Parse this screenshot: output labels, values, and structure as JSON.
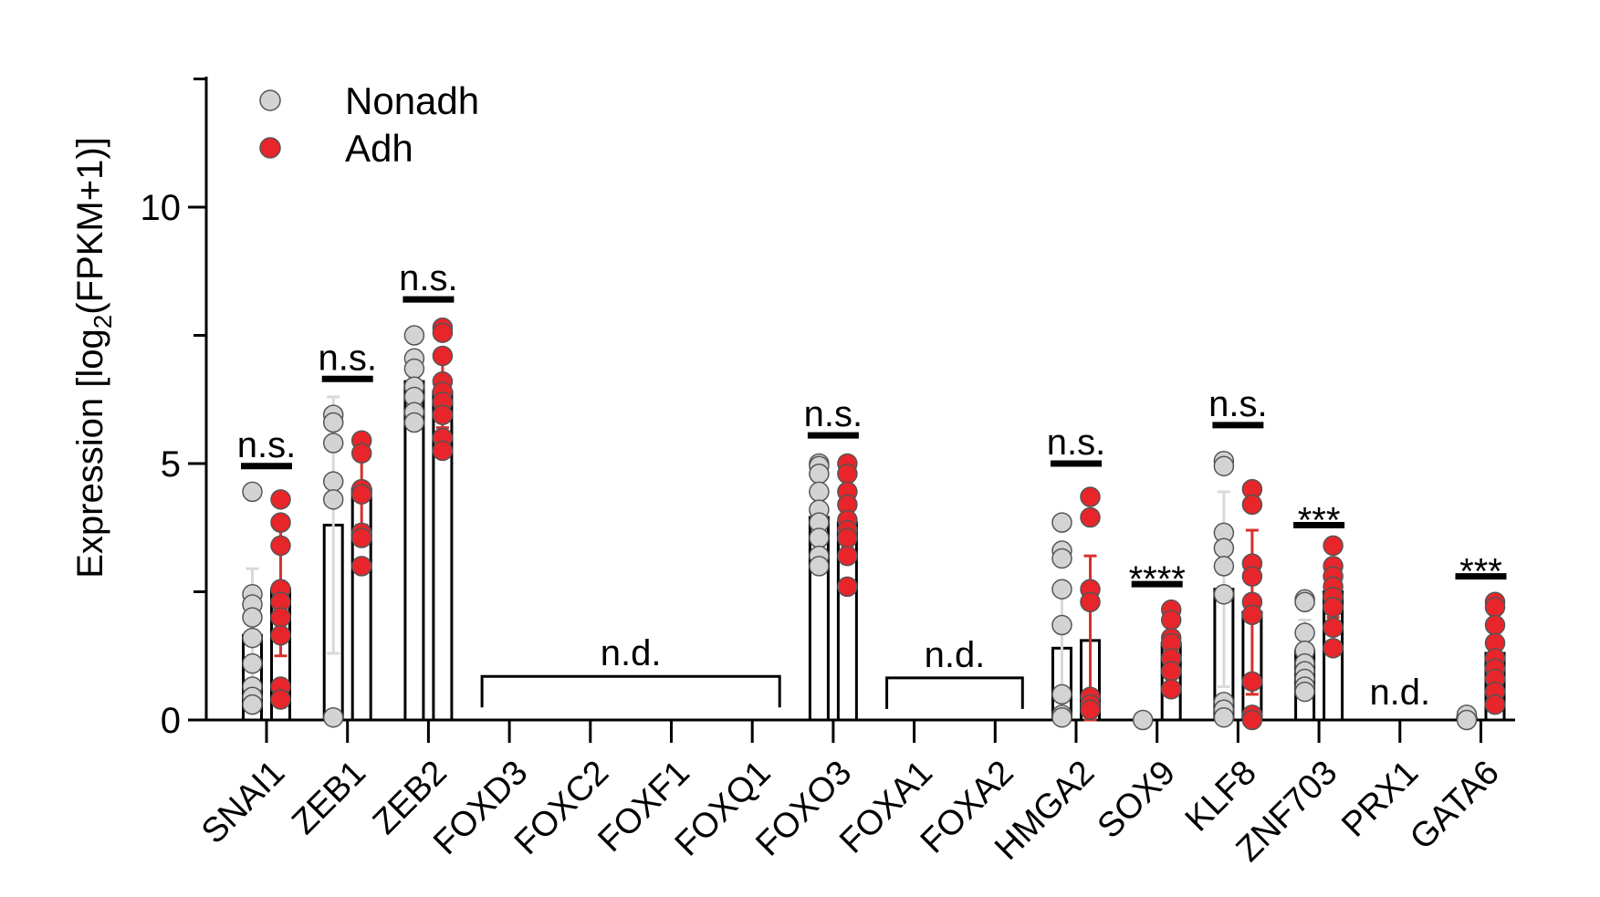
{
  "chart_data": {
    "type": "bar",
    "ylabel_main": "Expression [log",
    "ylabel_sub": "2",
    "ylabel_tail": "(FPKM+1)]",
    "xlabel": "",
    "ylim": [
      0,
      12.5
    ],
    "yticks": [
      0,
      5,
      10
    ],
    "grid": false,
    "legend_position": "top-left",
    "categories": [
      "SNAI1",
      "ZEB1",
      "ZEB2",
      "FOXD3",
      "FOXC2",
      "FOXF1",
      "FOXQ1",
      "FOXO3",
      "FOXA1",
      "FOXA2",
      "HMGA2",
      "SOX9",
      "KLF8",
      "ZNF703",
      "PRX1",
      "GATA6"
    ],
    "series": [
      {
        "name": "Nonadh",
        "color": "#d3d3d3",
        "error_color": "#d9d9d9",
        "means": [
          1.65,
          3.8,
          6.6,
          null,
          null,
          null,
          null,
          3.95,
          null,
          null,
          1.4,
          0,
          2.55,
          1.35,
          null,
          0.05
        ],
        "sd": [
          1.3,
          2.5,
          0.5,
          null,
          null,
          null,
          null,
          0.6,
          null,
          null,
          1.2,
          0,
          1.9,
          0.6,
          null,
          0.05
        ],
        "points": [
          [
            4.45,
            2.45,
            2.25,
            2.0,
            1.6,
            1.1,
            0.65,
            0.45,
            0.3
          ],
          [
            5.95,
            5.8,
            5.4,
            4.65,
            4.3,
            0.05
          ],
          [
            7.5,
            7.05,
            6.85,
            6.5,
            6.3,
            6.0,
            5.8
          ],
          [],
          [],
          [],
          [],
          [
            5.0,
            4.95,
            4.8,
            4.45,
            4.1,
            3.85,
            3.55,
            3.2,
            3.0
          ],
          [],
          [],
          [
            3.85,
            3.3,
            3.15,
            2.55,
            1.85,
            0.5,
            0.1,
            0.05
          ],
          [
            0.0
          ],
          [
            5.05,
            4.95,
            3.65,
            3.35,
            3.0,
            2.45,
            0.35,
            0.2,
            0.05
          ],
          [
            2.35,
            2.3,
            1.7,
            1.35,
            1.1,
            0.95,
            0.8,
            0.65,
            0.55
          ],
          [],
          [
            0.1,
            0.0
          ]
        ]
      },
      {
        "name": "Adh",
        "color": "#e8252a",
        "error_color": "#d8302c",
        "means": [
          2.55,
          4.5,
          6.4,
          null,
          null,
          null,
          null,
          3.85,
          null,
          null,
          1.55,
          1.5,
          2.1,
          2.5,
          null,
          1.3
        ],
        "sd": [
          1.3,
          0.7,
          0.7,
          null,
          null,
          null,
          null,
          0.5,
          null,
          null,
          1.65,
          0.5,
          1.6,
          0.5,
          null,
          0.6
        ],
        "points": [
          [
            4.3,
            3.85,
            3.4,
            2.55,
            2.3,
            2.0,
            1.65,
            0.65,
            0.4
          ],
          [
            5.45,
            5.2,
            4.5,
            4.4,
            3.65,
            3.55,
            3.0
          ],
          [
            7.65,
            7.55,
            7.1,
            6.6,
            6.4,
            6.2,
            5.95,
            5.5,
            5.25
          ],
          [],
          [],
          [],
          [],
          [
            5.0,
            4.8,
            4.45,
            4.2,
            3.9,
            3.7,
            3.55,
            3.2,
            2.6
          ],
          [],
          [],
          [
            4.35,
            3.95,
            2.55,
            2.3,
            0.45,
            0.3,
            0.2
          ],
          [
            2.15,
            1.95,
            1.6,
            1.5,
            1.2,
            0.95,
            0.6
          ],
          [
            4.5,
            4.2,
            3.05,
            2.8,
            2.3,
            2.05,
            0.75,
            0.1,
            0.0
          ],
          [
            3.4,
            3.0,
            2.8,
            2.6,
            2.4,
            2.2,
            1.8,
            1.4
          ],
          [],
          [
            2.3,
            2.2,
            1.85,
            1.5,
            1.2,
            1.0,
            0.8,
            0.55,
            0.3
          ]
        ]
      }
    ],
    "significance": [
      {
        "category": "SNAI1",
        "label": "n.s.",
        "y": 4.95
      },
      {
        "category": "ZEB1",
        "label": "n.s.",
        "y": 6.65
      },
      {
        "category": "ZEB2",
        "label": "n.s.",
        "y": 8.2
      },
      {
        "category": "FOXO3",
        "label": "n.s.",
        "y": 5.55
      },
      {
        "category": "HMGA2",
        "label": "n.s.",
        "y": 5.0
      },
      {
        "category": "SOX9",
        "label": "****",
        "y": 2.65
      },
      {
        "category": "KLF8",
        "label": "n.s.",
        "y": 5.75
      },
      {
        "category": "ZNF703",
        "label": "***",
        "y": 3.8
      },
      {
        "category": "GATA6",
        "label": "***",
        "y": 2.8
      }
    ],
    "not_detected": [
      {
        "from": "FOXD3",
        "to": "FOXQ1",
        "label": "n.d.",
        "y": 0.85
      },
      {
        "from": "FOXA1",
        "to": "FOXA2",
        "label": "n.d.",
        "y": 0.82
      },
      {
        "category": "PRX1",
        "label": "n.d."
      }
    ]
  }
}
